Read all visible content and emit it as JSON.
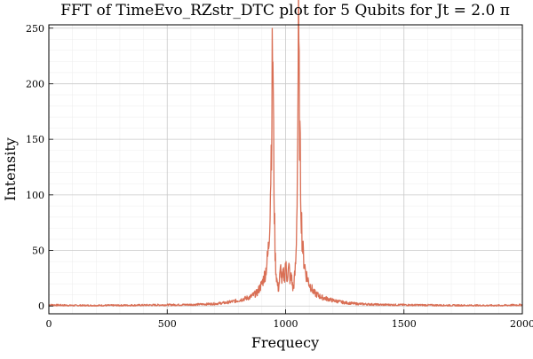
{
  "chart_data": {
    "type": "line",
    "title": "FFT of TimeEvo_RZstr_DTC plot for 5 Qubits for Jt = 2.0 π",
    "xlabel": "Frequecy",
    "ylabel": "Intensity",
    "xlim": [
      0,
      2000
    ],
    "ylim": [
      -7,
      253
    ],
    "x_ticks": [
      0,
      500,
      1000,
      1500,
      2000
    ],
    "x_tick_labels": [
      "0",
      "500",
      "1000",
      "1500",
      "2000"
    ],
    "y_ticks": [
      0,
      50,
      100,
      150,
      200,
      250
    ],
    "y_tick_labels": [
      "0",
      "50",
      "100",
      "150",
      "200",
      "250"
    ],
    "grid": true,
    "legend": "none",
    "series": [
      {
        "color": "#d96f55",
        "x": [
          0,
          100,
          200,
          300,
          400,
          500,
          600,
          700,
          750,
          800,
          850,
          880,
          900,
          915,
          925,
          930,
          935,
          940,
          943,
          946,
          948,
          950,
          953,
          956,
          960,
          965,
          970,
          975,
          980,
          985,
          990,
          995,
          1000,
          1005,
          1010,
          1015,
          1020,
          1025,
          1030,
          1035,
          1040,
          1044,
          1047,
          1050,
          1052,
          1054,
          1057,
          1060,
          1065,
          1070,
          1075,
          1085,
          1100,
          1120,
          1150,
          1200,
          1250,
          1300,
          1400,
          1500,
          1600,
          1700,
          1800,
          1900,
          2000
        ],
        "y": [
          1,
          0.5,
          0.5,
          0.6,
          0.8,
          1,
          1.2,
          2,
          3,
          5,
          8,
          12,
          20,
          30,
          45,
          60,
          95,
          150,
          200,
          246,
          180,
          130,
          80,
          45,
          30,
          20,
          15,
          25,
          35,
          20,
          30,
          25,
          40,
          25,
          30,
          35,
          20,
          30,
          15,
          20,
          30,
          45,
          80,
          130,
          180,
          246,
          200,
          150,
          95,
          60,
          45,
          30,
          20,
          12,
          8,
          5,
          3,
          2,
          1.2,
          1,
          0.8,
          0.6,
          0.5,
          0.5,
          1
        ]
      }
    ]
  }
}
